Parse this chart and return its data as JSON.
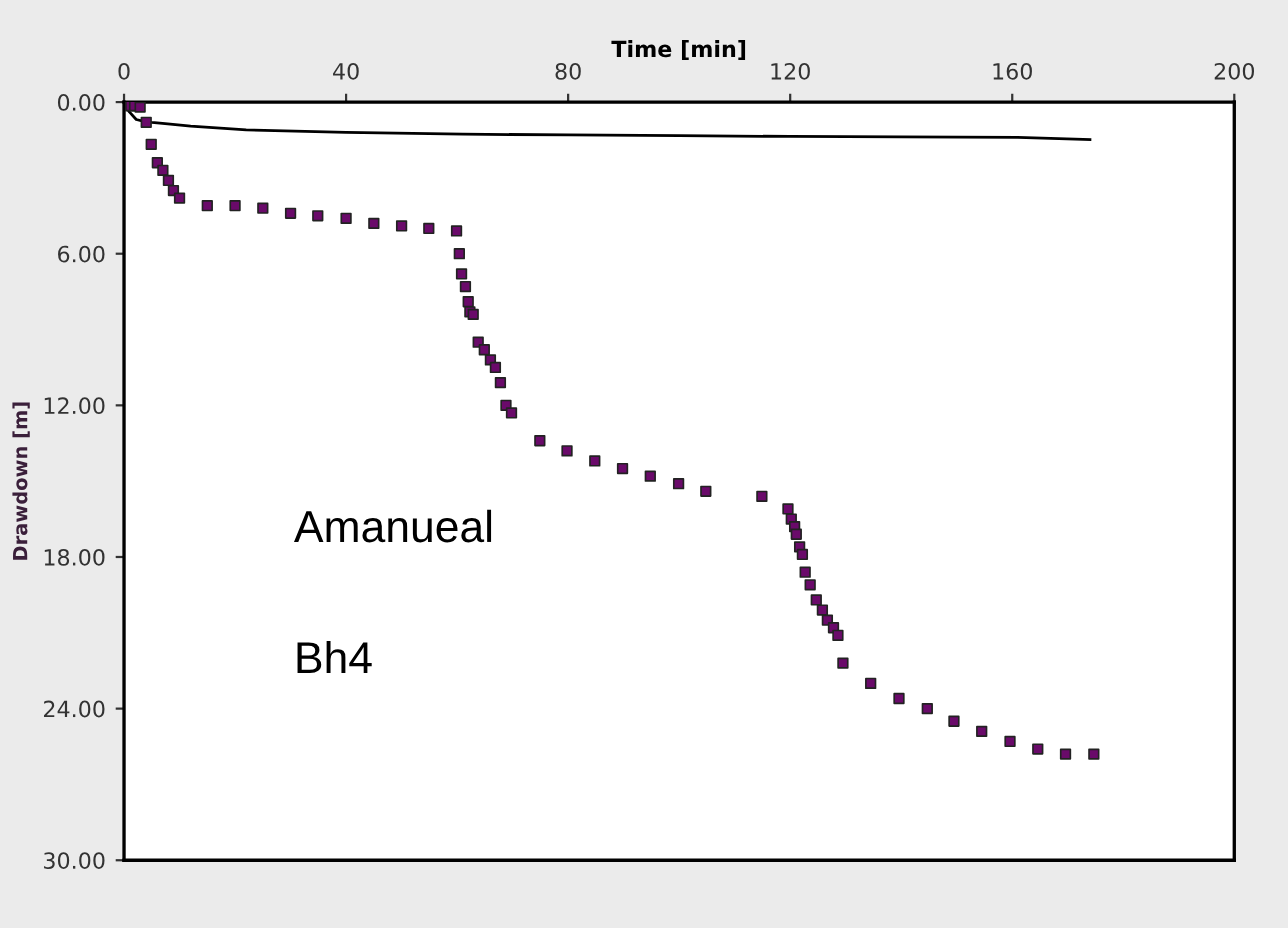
{
  "chart_data": {
    "type": "scatter",
    "xlabel": "Time [min]",
    "ylabel": "Drawdown [m]",
    "xlim": [
      0,
      200
    ],
    "xticks": [
      0,
      40,
      80,
      120,
      160,
      200
    ],
    "ylim": [
      30,
      0
    ],
    "yticks": [
      {
        "value": 0,
        "label": "0.00"
      },
      {
        "value": 6,
        "label": "6.00"
      },
      {
        "value": 12,
        "label": "12.00"
      },
      {
        "value": 18,
        "label": "18.00"
      },
      {
        "value": 24,
        "label": "24.00"
      },
      {
        "value": 30,
        "label": "30.00"
      }
    ],
    "grid": false,
    "legend": false,
    "annotations": [
      "Amanueal",
      "Bh4"
    ],
    "series": [
      {
        "marker": "square",
        "color": "#6a0a6a",
        "x": [
          1.2,
          1.9,
          2.9,
          4.0,
          4.9,
          6.0,
          7.0,
          8.0,
          8.9,
          10.0,
          15.0,
          20.0,
          25.0,
          30.0,
          34.9,
          40.0,
          45.0,
          50.0,
          54.9,
          59.9,
          60.4,
          60.8,
          61.5,
          62.0,
          62.3,
          62.9,
          63.8,
          64.9,
          66.0,
          66.9,
          67.8,
          68.8,
          69.8,
          74.9,
          79.8,
          84.8,
          89.8,
          94.8,
          99.9,
          104.8,
          114.9,
          119.6,
          120.2,
          120.8,
          121.1,
          121.7,
          122.2,
          122.7,
          123.6,
          124.7,
          125.8,
          126.7,
          127.8,
          128.6,
          129.5,
          134.5,
          139.6,
          144.7,
          149.5,
          154.5,
          159.6,
          164.6,
          169.6,
          174.7
        ],
        "values": [
          0.15,
          0.15,
          0.2,
          0.8,
          1.67,
          2.4,
          2.7,
          3.1,
          3.5,
          3.8,
          4.1,
          4.1,
          4.2,
          4.4,
          4.5,
          4.6,
          4.8,
          4.9,
          5.0,
          5.1,
          6.0,
          6.8,
          7.3,
          7.9,
          8.3,
          8.4,
          9.5,
          9.8,
          10.2,
          10.5,
          11.1,
          12.0,
          12.3,
          13.4,
          13.8,
          14.2,
          14.5,
          14.8,
          15.1,
          15.4,
          15.6,
          16.1,
          16.5,
          16.8,
          17.1,
          17.6,
          17.9,
          18.6,
          19.1,
          19.7,
          20.1,
          20.5,
          20.8,
          21.1,
          22.2,
          23.0,
          23.6,
          24.0,
          24.5,
          24.9,
          25.3,
          25.6,
          25.8,
          25.8
        ]
      },
      {
        "type": "line",
        "color": "#000000",
        "x": [
          0.1,
          0.5,
          1.0,
          2.2,
          3.4,
          5.0,
          7.4,
          12,
          22,
          40,
          61,
          80,
          100,
          120,
          140,
          161,
          174
        ],
        "values": [
          0.05,
          0.25,
          0.4,
          0.69,
          0.75,
          0.8,
          0.85,
          0.95,
          1.1,
          1.2,
          1.27,
          1.3,
          1.33,
          1.36,
          1.38,
          1.4,
          1.48
        ]
      }
    ]
  }
}
